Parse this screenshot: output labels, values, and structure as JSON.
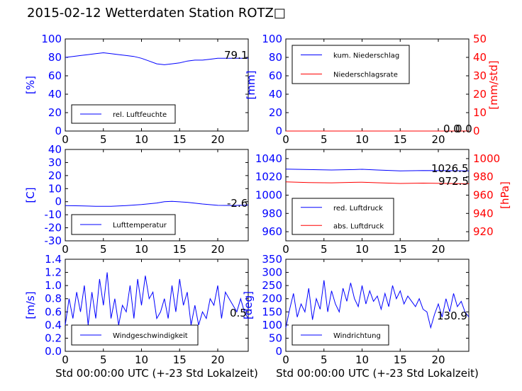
{
  "page_title": "2015-02-12 Wetterdaten Station ROTZ□",
  "xlabel": "Std 00:00:00 UTC (+-23 Std Lokalzeit)",
  "colors": {
    "blue": "#0000ff",
    "red": "#ff0000",
    "black": "#000000"
  },
  "chart_data": [
    {
      "type": "line",
      "ylabel": "[%]",
      "xlim": [
        0,
        24
      ],
      "ylim": [
        0,
        100
      ],
      "xticks": [
        0,
        5,
        10,
        15,
        20
      ],
      "yticks": [
        0,
        20,
        40,
        60,
        80,
        100
      ],
      "legend_placement": "lower-left",
      "last_value_label": "79.1",
      "series": [
        {
          "name": "rel. Luftfeuchte",
          "color": "#0000ff",
          "x": [
            0,
            1,
            2,
            3,
            4,
            5,
            6,
            7,
            8,
            9,
            10,
            11,
            12,
            13,
            14,
            15,
            16,
            17,
            18,
            19,
            20,
            21,
            22,
            23,
            24
          ],
          "y": [
            80,
            81,
            82,
            83,
            84,
            85,
            84,
            83,
            82,
            81,
            79,
            76,
            73,
            72,
            73,
            74,
            76,
            77,
            77,
            78,
            79,
            79,
            79,
            79,
            79.1
          ]
        }
      ]
    },
    {
      "type": "line",
      "ylabel": "[mm]",
      "y2label": "[mm/std]",
      "xlim": [
        0,
        24
      ],
      "ylim": [
        0,
        100
      ],
      "y2lim": [
        0,
        50
      ],
      "xticks": [
        0,
        5,
        10,
        15,
        20
      ],
      "yticks": [
        0,
        20,
        40,
        60,
        80,
        100
      ],
      "y2ticks": [
        0,
        10,
        20,
        30,
        40,
        50
      ],
      "legend_placement": "upper-left",
      "last_value_labels": [
        "0.0",
        "0.0"
      ],
      "series": [
        {
          "name": "kum. Niederschlag",
          "color": "#0000ff",
          "x": [
            0,
            24
          ],
          "y": [
            0,
            0
          ]
        },
        {
          "name": "Niederschlagsrate",
          "color": "#ff0000",
          "x": [
            0,
            24
          ],
          "y": [
            0,
            0
          ]
        }
      ]
    },
    {
      "type": "line",
      "ylabel": "[C]",
      "xlim": [
        0,
        24
      ],
      "ylim": [
        -30,
        40
      ],
      "xticks": [
        0,
        5,
        10,
        15,
        20
      ],
      "yticks": [
        -30,
        -20,
        -10,
        0,
        10,
        20,
        30,
        40
      ],
      "legend_placement": "lower-left",
      "last_value_label": "-2.6",
      "series": [
        {
          "name": "Lufttemperatur",
          "color": "#0000ff",
          "x": [
            0,
            2,
            4,
            5,
            6,
            8,
            10,
            12,
            13,
            14,
            16,
            18,
            20,
            22,
            24
          ],
          "y": [
            -3.0,
            -3.2,
            -3.5,
            -3.6,
            -3.5,
            -3.0,
            -2.2,
            -1.0,
            0.0,
            0.3,
            -0.5,
            -1.8,
            -2.8,
            -2.9,
            -2.6
          ]
        }
      ]
    },
    {
      "type": "line",
      "ylabel": "",
      "y2label": "[hPa]",
      "xlim": [
        0,
        24
      ],
      "ylim": [
        950,
        1050
      ],
      "y2lim": [
        910,
        1010
      ],
      "xticks": [
        0,
        5,
        10,
        15,
        20
      ],
      "yticks": [
        960,
        980,
        1000,
        1020,
        1040
      ],
      "y2ticks": [
        920,
        940,
        960,
        980,
        1000
      ],
      "legend_placement": "lower-left",
      "last_value_labels": [
        "1026.5",
        "972.5"
      ],
      "series": [
        {
          "name": "red. Luftdruck",
          "color": "#0000ff",
          "x": [
            0,
            3,
            6,
            9,
            10,
            12,
            15,
            18,
            21,
            24
          ],
          "y": [
            1028.5,
            1028,
            1027.5,
            1028,
            1028.3,
            1027.5,
            1026.5,
            1027,
            1026.8,
            1026.5
          ]
        },
        {
          "name": "abs. Luftdruck",
          "color": "#ff0000",
          "y_axis": "right",
          "x": [
            0,
            3,
            6,
            9,
            10,
            12,
            15,
            18,
            21,
            24
          ],
          "y": [
            974.5,
            973.8,
            973.5,
            974,
            974.2,
            973.6,
            972.8,
            973.2,
            972.8,
            972.5
          ]
        }
      ]
    },
    {
      "type": "line",
      "ylabel": "[m/s]",
      "xlim": [
        0,
        24
      ],
      "ylim": [
        0,
        1.4
      ],
      "xticks": [
        0,
        5,
        10,
        15,
        20
      ],
      "yticks": [
        0.0,
        0.2,
        0.4,
        0.6,
        0.8,
        1.0,
        1.2,
        1.4
      ],
      "legend_placement": "lower-left",
      "last_value_label": "0.5",
      "series": [
        {
          "name": "Windgeschwindigkeit",
          "color": "#0000ff",
          "x": [
            0,
            0.5,
            1,
            1.5,
            2,
            2.5,
            3,
            3.5,
            4,
            4.5,
            5,
            5.5,
            6,
            6.5,
            7,
            7.5,
            8,
            8.5,
            9,
            9.5,
            10,
            10.5,
            11,
            11.5,
            12,
            12.5,
            13,
            13.5,
            14,
            14.5,
            15,
            15.5,
            16,
            16.5,
            17,
            17.5,
            18,
            18.5,
            19,
            19.5,
            20,
            20.5,
            21,
            21.5,
            22,
            22.5,
            23,
            23.5,
            24
          ],
          "y": [
            0.4,
            0.8,
            0.5,
            0.9,
            0.6,
            1.0,
            0.4,
            0.9,
            0.5,
            1.1,
            0.7,
            1.2,
            0.5,
            0.8,
            0.4,
            0.7,
            0.6,
            1.0,
            0.5,
            1.1,
            0.7,
            1.15,
            0.8,
            0.9,
            0.5,
            0.6,
            0.8,
            0.5,
            1.0,
            0.6,
            1.1,
            0.7,
            0.9,
            0.4,
            0.7,
            0.4,
            0.6,
            0.5,
            0.8,
            0.7,
            1.0,
            0.5,
            0.9,
            0.8,
            0.7,
            0.6,
            0.8,
            0.6,
            0.5
          ]
        }
      ]
    },
    {
      "type": "line",
      "ylabel": "[deg]",
      "xlim": [
        0,
        24
      ],
      "ylim": [
        0,
        350
      ],
      "xticks": [
        0,
        5,
        10,
        15,
        20
      ],
      "yticks": [
        0,
        50,
        100,
        150,
        200,
        250,
        300,
        350
      ],
      "legend_placement": "lower-left",
      "last_value_label": "130.9",
      "series": [
        {
          "name": "Windrichtung",
          "color": "#0000ff",
          "x": [
            0,
            0.5,
            1,
            1.5,
            2,
            2.5,
            3,
            3.5,
            4,
            4.5,
            5,
            5.5,
            6,
            6.5,
            7,
            7.5,
            8,
            8.5,
            9,
            9.5,
            10,
            10.5,
            11,
            11.5,
            12,
            12.5,
            13,
            13.5,
            14,
            14.5,
            15,
            15.5,
            16,
            16.5,
            17,
            17.5,
            18,
            18.5,
            19,
            19.5,
            20,
            20.5,
            21,
            21.5,
            22,
            22.5,
            23,
            23.5,
            24
          ],
          "y": [
            90,
            160,
            220,
            130,
            180,
            150,
            240,
            120,
            200,
            160,
            270,
            150,
            230,
            180,
            150,
            240,
            190,
            260,
            200,
            170,
            250,
            180,
            230,
            190,
            210,
            160,
            220,
            170,
            250,
            200,
            230,
            180,
            210,
            190,
            170,
            200,
            160,
            150,
            90,
            140,
            180,
            130,
            200,
            150,
            220,
            170,
            190,
            150,
            130.9
          ]
        }
      ]
    }
  ]
}
